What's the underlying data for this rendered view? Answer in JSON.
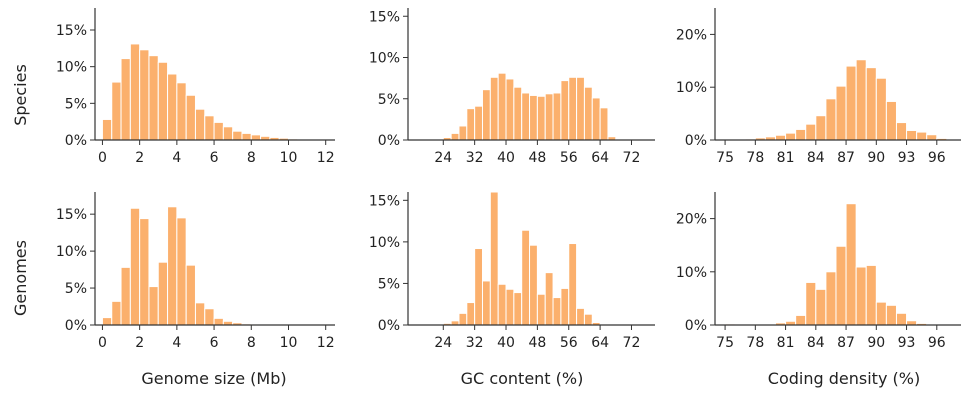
{
  "colors": {
    "bar": "#fbb06d",
    "bar_edge": "#ffffff",
    "axis": "#333333",
    "text": "#222222"
  },
  "row_labels": [
    "Species",
    "Genomes"
  ],
  "chart_data": [
    {
      "id": "species-genome-size",
      "type": "bar",
      "row": 0,
      "col": 0,
      "title": "",
      "xlabel": "",
      "ylabel": "Species",
      "x": [
        0.25,
        0.75,
        1.25,
        1.75,
        2.25,
        2.75,
        3.25,
        3.75,
        4.25,
        4.75,
        5.25,
        5.75,
        6.25,
        6.75,
        7.25,
        7.75,
        8.25,
        8.75,
        9.25,
        9.75,
        10.25,
        10.75
      ],
      "values": [
        2.8,
        7.9,
        11.1,
        13.1,
        12.3,
        11.5,
        10.6,
        9.0,
        7.8,
        6.1,
        4.2,
        3.3,
        2.4,
        1.8,
        1.2,
        0.9,
        0.7,
        0.5,
        0.35,
        0.25,
        0.15,
        0.1
      ],
      "bin_width": 0.5,
      "xlim": [
        -0.4,
        12.5
      ],
      "ylim": [
        0,
        18
      ],
      "xticks": [
        0,
        2,
        4,
        6,
        8,
        10,
        12
      ],
      "xtick_labels": [
        "0",
        "2",
        "4",
        "6",
        "8",
        "10",
        "12"
      ],
      "yticks": [
        0,
        5,
        10,
        15
      ],
      "ytick_labels": [
        "0%",
        "5%",
        "10%",
        "15%"
      ]
    },
    {
      "id": "species-gc-content",
      "type": "bar",
      "row": 0,
      "col": 1,
      "title": "",
      "xlabel": "",
      "ylabel": "",
      "x": [
        23,
        25,
        27,
        29,
        31,
        33,
        35,
        37,
        39,
        41,
        43,
        45,
        47,
        49,
        51,
        53,
        55,
        57,
        59,
        61,
        63,
        65,
        67,
        69,
        71,
        73,
        75
      ],
      "values": [
        0.05,
        0.3,
        0.8,
        1.7,
        3.8,
        4.1,
        6.1,
        7.6,
        8.1,
        7.4,
        6.4,
        5.7,
        5.4,
        5.3,
        5.6,
        5.7,
        7.2,
        7.6,
        7.6,
        6.4,
        5.1,
        3.9,
        0.4,
        0.1,
        0.05,
        0.02,
        0.01
      ],
      "bin_width": 2,
      "xlim": [
        15,
        78
      ],
      "ylim": [
        0,
        16
      ],
      "xticks": [
        24,
        32,
        40,
        48,
        56,
        64,
        72
      ],
      "xtick_labels": [
        "24",
        "32",
        "40",
        "48",
        "56",
        "64",
        "72"
      ],
      "yticks": [
        0,
        5,
        10,
        15
      ],
      "ytick_labels": [
        "0%",
        "5%",
        "10%",
        "15%"
      ]
    },
    {
      "id": "species-coding-density",
      "type": "bar",
      "row": 0,
      "col": 2,
      "title": "",
      "xlabel": "",
      "ylabel": "",
      "x": [
        75.5,
        76.5,
        77.5,
        78.5,
        79.5,
        80.5,
        81.5,
        82.5,
        83.5,
        84.5,
        85.5,
        86.5,
        87.5,
        88.5,
        89.5,
        90.5,
        91.5,
        92.5,
        93.5,
        94.5,
        95.5,
        96.5,
        97.5
      ],
      "values": [
        0.05,
        0.1,
        0.2,
        0.4,
        0.6,
        0.9,
        1.3,
        2.0,
        3.0,
        4.6,
        7.8,
        10.2,
        14.0,
        15.2,
        13.7,
        11.7,
        7.3,
        3.3,
        1.8,
        1.5,
        1.0,
        0.3,
        0.1
      ],
      "bin_width": 1,
      "xlim": [
        74,
        98.5
      ],
      "ylim": [
        0,
        25
      ],
      "xticks": [
        75,
        78,
        81,
        84,
        87,
        90,
        93,
        96
      ],
      "xtick_labels": [
        "75",
        "78",
        "81",
        "84",
        "87",
        "90",
        "93",
        "96"
      ],
      "yticks": [
        0,
        10,
        20
      ],
      "ytick_labels": [
        "0%",
        "10%",
        "20%"
      ]
    },
    {
      "id": "genomes-genome-size",
      "type": "bar",
      "row": 1,
      "col": 0,
      "title": "",
      "xlabel": "Genome size (Mb)",
      "ylabel": "Genomes",
      "x": [
        0.25,
        0.75,
        1.25,
        1.75,
        2.25,
        2.75,
        3.25,
        3.75,
        4.25,
        4.75,
        5.25,
        5.75,
        6.25,
        6.75,
        7.25,
        7.75,
        8.25,
        8.75,
        9.25,
        9.75,
        10.25,
        10.75
      ],
      "values": [
        1.0,
        3.2,
        7.8,
        15.8,
        14.4,
        5.2,
        8.5,
        16.0,
        14.5,
        8.1,
        3.0,
        2.2,
        0.9,
        0.5,
        0.3,
        0.15,
        0.1,
        0.05,
        0.03,
        0.02,
        0.01,
        0.01
      ],
      "bin_width": 0.5,
      "xlim": [
        -0.4,
        12.5
      ],
      "ylim": [
        0,
        18
      ],
      "xticks": [
        0,
        2,
        4,
        6,
        8,
        10,
        12
      ],
      "xtick_labels": [
        "0",
        "2",
        "4",
        "6",
        "8",
        "10",
        "12"
      ],
      "yticks": [
        0,
        5,
        10,
        15
      ],
      "ytick_labels": [
        "0%",
        "5%",
        "10%",
        "15%"
      ]
    },
    {
      "id": "genomes-gc-content",
      "type": "bar",
      "row": 1,
      "col": 1,
      "title": "",
      "xlabel": "GC content (%)",
      "ylabel": "",
      "x": [
        23,
        25,
        27,
        29,
        31,
        33,
        35,
        37,
        39,
        41,
        43,
        45,
        47,
        49,
        51,
        53,
        55,
        57,
        59,
        61,
        63,
        65,
        67,
        69,
        71,
        73,
        75
      ],
      "values": [
        0.05,
        0.2,
        0.5,
        1.4,
        2.7,
        9.2,
        5.3,
        16.0,
        4.9,
        4.3,
        3.9,
        11.4,
        9.6,
        3.7,
        6.3,
        3.3,
        4.4,
        9.8,
        2.0,
        1.3,
        0.3,
        0.1,
        0.05,
        0.02,
        0.01,
        0.01,
        0.0
      ],
      "bin_width": 2,
      "xlim": [
        15,
        78
      ],
      "ylim": [
        0,
        16
      ],
      "xticks": [
        24,
        32,
        40,
        48,
        56,
        64,
        72
      ],
      "xtick_labels": [
        "24",
        "32",
        "40",
        "48",
        "56",
        "64",
        "72"
      ],
      "yticks": [
        0,
        5,
        10,
        15
      ],
      "ytick_labels": [
        "0%",
        "5%",
        "10%",
        "15%"
      ]
    },
    {
      "id": "genomes-coding-density",
      "type": "bar",
      "row": 1,
      "col": 2,
      "title": "",
      "xlabel": "Coding density (%)",
      "ylabel": "",
      "x": [
        75.5,
        76.5,
        77.5,
        78.5,
        79.5,
        80.5,
        81.5,
        82.5,
        83.5,
        84.5,
        85.5,
        86.5,
        87.5,
        88.5,
        89.5,
        90.5,
        91.5,
        92.5,
        93.5,
        94.5,
        95.5,
        96.5,
        97.5
      ],
      "values": [
        0.2,
        0.05,
        0.05,
        0.1,
        0.1,
        0.4,
        0.7,
        1.8,
        8.0,
        6.7,
        10.0,
        14.8,
        22.8,
        10.9,
        11.2,
        4.3,
        3.7,
        2.2,
        0.8,
        0.3,
        0.1,
        0.05,
        0.02
      ],
      "bin_width": 1,
      "xlim": [
        74,
        98.5
      ],
      "ylim": [
        0,
        25
      ],
      "xticks": [
        75,
        78,
        81,
        84,
        87,
        90,
        93,
        96
      ],
      "xtick_labels": [
        "75",
        "78",
        "81",
        "84",
        "87",
        "90",
        "93",
        "96"
      ],
      "yticks": [
        0,
        10,
        20
      ],
      "ytick_labels": [
        "0%",
        "10%",
        "20%"
      ]
    }
  ]
}
